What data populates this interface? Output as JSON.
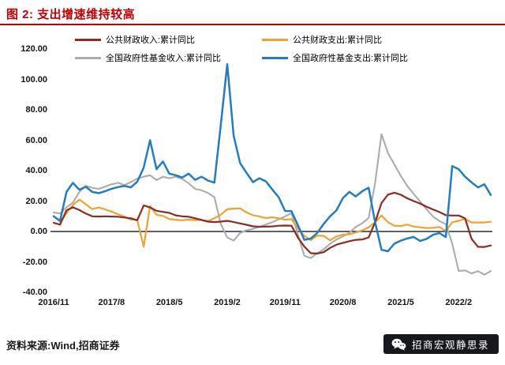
{
  "header": {
    "title": "图 2: 支出增速维持较高"
  },
  "footer": {
    "source": "资料来源:Wind,招商证券",
    "badge_text": "招商宏观静思录",
    "badge_icon": "wechat-icon"
  },
  "colors": {
    "accent_red": "#C00000",
    "badge_bg": "#17181d",
    "axis_line": "#000000",
    "series_public_revenue": "#8E2A1E",
    "series_public_expenditure": "#F0A22E",
    "series_fund_revenue": "#ACACAC",
    "series_fund_expenditure": "#1F7DC5"
  },
  "chart_data": {
    "type": "line",
    "title": "支出增速维持较高",
    "xlabel": "",
    "ylabel": "",
    "unit": "%",
    "ylim": [
      -40,
      120
    ],
    "ytick_step": 20,
    "grid": false,
    "legend_position": "top",
    "x_tick_labels": [
      "2016/11",
      "2017/8",
      "2018/5",
      "2019/2",
      "2019/11",
      "2020/8",
      "2021/5",
      "2022/2"
    ],
    "x_tick_indices": [
      0,
      9,
      18,
      27,
      36,
      45,
      54,
      63
    ],
    "x": [
      "2016/11",
      "2016/12",
      "2017/1",
      "2017/2",
      "2017/3",
      "2017/4",
      "2017/5",
      "2017/6",
      "2017/7",
      "2017/8",
      "2017/9",
      "2017/10",
      "2017/11",
      "2017/12",
      "2018/1",
      "2018/2",
      "2018/3",
      "2018/4",
      "2018/5",
      "2018/6",
      "2018/7",
      "2018/8",
      "2018/9",
      "2018/10",
      "2018/11",
      "2018/12",
      "2019/1",
      "2019/2",
      "2019/3",
      "2019/4",
      "2019/5",
      "2019/6",
      "2019/7",
      "2019/8",
      "2019/9",
      "2019/10",
      "2019/11",
      "2019/12",
      "2020/1",
      "2020/2",
      "2020/3",
      "2020/4",
      "2020/5",
      "2020/6",
      "2020/7",
      "2020/8",
      "2020/9",
      "2020/10",
      "2020/11",
      "2020/12",
      "2021/1",
      "2021/2",
      "2021/3",
      "2021/4",
      "2021/5",
      "2021/6",
      "2021/7",
      "2021/8",
      "2021/9",
      "2021/10",
      "2021/11",
      "2021/12",
      "2022/1",
      "2022/2",
      "2022/3",
      "2022/4",
      "2022/5",
      "2022/6",
      "2022/7"
    ],
    "series": [
      {
        "name": "公共财政收入:累计同比",
        "color": "#8E2A1E",
        "values": [
          5.7,
          4.5,
          14.0,
          15.9,
          14.1,
          11.8,
          10.0,
          9.8,
          10.0,
          9.8,
          9.7,
          9.2,
          8.7,
          7.4,
          17.1,
          15.8,
          13.6,
          12.9,
          12.2,
          10.6,
          10.0,
          9.7,
          8.7,
          7.6,
          6.5,
          6.2,
          6.5,
          7.0,
          6.2,
          5.3,
          4.4,
          3.4,
          3.1,
          3.2,
          3.3,
          3.8,
          3.9,
          3.8,
          -4.0,
          -9.9,
          -14.3,
          -14.5,
          -13.6,
          -10.8,
          -8.7,
          -7.5,
          -6.4,
          -5.5,
          -5.3,
          -3.9,
          6.0,
          18.7,
          24.2,
          25.5,
          24.2,
          21.8,
          20.0,
          18.4,
          16.3,
          14.5,
          12.8,
          10.7,
          10.5,
          10.5,
          8.6,
          -4.8,
          -10.1,
          -10.2,
          -9.2
        ]
      },
      {
        "name": "公共财政支出:累计同比",
        "color": "#F0A22E",
        "values": [
          10.2,
          6.4,
          12.0,
          17.4,
          21.0,
          17.9,
          14.7,
          15.8,
          14.5,
          13.1,
          11.4,
          9.8,
          7.8,
          7.7,
          -10.0,
          16.7,
          10.9,
          10.3,
          8.1,
          7.8,
          7.3,
          7.8,
          7.5,
          7.6,
          6.8,
          8.7,
          11.0,
          14.6,
          15.0,
          15.2,
          12.5,
          10.7,
          9.9,
          8.8,
          9.4,
          8.7,
          7.7,
          8.1,
          2.0,
          -2.9,
          -5.7,
          -2.7,
          -2.9,
          -5.8,
          -3.2,
          -2.1,
          -1.9,
          -0.6,
          0.7,
          2.8,
          6.0,
          10.5,
          6.2,
          3.8,
          3.6,
          4.5,
          3.3,
          2.7,
          2.3,
          2.4,
          2.9,
          0.3,
          6.0,
          7.0,
          8.3,
          5.9,
          5.9,
          5.9,
          6.4
        ]
      },
      {
        "name": "全国政府性基金收入:累计同比",
        "color": "#ACACAC",
        "values": [
          12.5,
          11.9,
          16.0,
          19.0,
          26.0,
          30.0,
          28.8,
          28.0,
          29.5,
          31.0,
          32.0,
          30.5,
          32.5,
          34.8,
          36.0,
          37.0,
          33.8,
          36.0,
          35.0,
          36.0,
          34.6,
          31.7,
          28.0,
          27.1,
          25.3,
          22.6,
          5.0,
          -4.0,
          -5.9,
          -1.0,
          0.8,
          1.7,
          3.0,
          4.6,
          6.1,
          8.0,
          9.9,
          12.0,
          -2.0,
          -16.0,
          -17.5,
          -14.2,
          -11.8,
          -8.1,
          -5.2,
          -3.2,
          -0.9,
          3.0,
          5.4,
          8.9,
          32.0,
          64.0,
          51.7,
          44.0,
          36.6,
          30.0,
          24.8,
          19.7,
          14.7,
          9.8,
          6.9,
          4.8,
          -8.0,
          -25.9,
          -25.6,
          -27.6,
          -26.1,
          -28.4,
          -26.0
        ]
      },
      {
        "name": "全国政府性基金支出:累计同比",
        "color": "#1F7DC5",
        "values": [
          10.0,
          7.0,
          26.0,
          32.0,
          27.5,
          29.4,
          26.0,
          25.2,
          26.5,
          28.0,
          29.2,
          30.0,
          29.0,
          32.7,
          42.0,
          60.0,
          41.0,
          46.0,
          38.0,
          37.0,
          35.5,
          38.0,
          34.0,
          36.0,
          33.5,
          32.1,
          70.0,
          110.0,
          63.0,
          45.0,
          38.6,
          32.4,
          35.0,
          33.0,
          27.7,
          22.6,
          13.5,
          13.4,
          4.0,
          -5.5,
          -4.6,
          -1.0,
          5.0,
          10.0,
          14.0,
          22.0,
          26.0,
          23.0,
          26.5,
          28.8,
          6.0,
          -12.0,
          -13.0,
          -8.0,
          -6.0,
          -4.6,
          -3.6,
          -6.2,
          -4.9,
          -2.2,
          -1.0,
          -3.7,
          43.0,
          41.0,
          36.0,
          32.3,
          29.0,
          31.0,
          24.0
        ]
      }
    ]
  }
}
